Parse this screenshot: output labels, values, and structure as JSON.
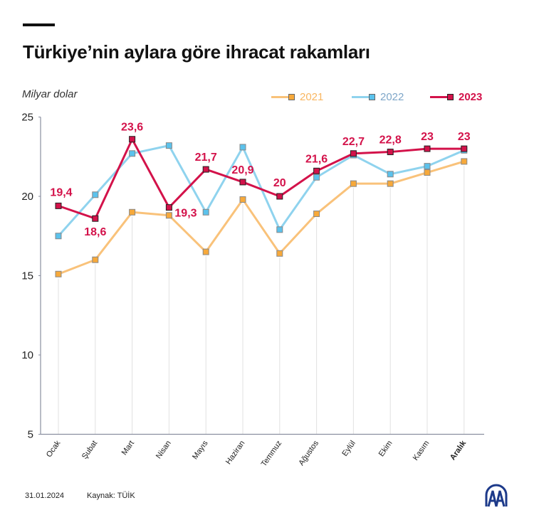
{
  "title": "Türkiye’nin aylara göre ihracat rakamları",
  "footer": {
    "date": "31.01.2024",
    "source": "Kaynak: TÜİK",
    "logo_text": "AA"
  },
  "chart_data": {
    "type": "line",
    "title": "Türkiye’nin aylara göre ihracat rakamları",
    "ylabel": "Milyar dolar",
    "xlabel": "",
    "categories": [
      "Ocak",
      "Şubat",
      "Mart",
      "Nisan",
      "Mayıs",
      "Haziran",
      "Temmuz",
      "Ağustos",
      "Eylül",
      "Ekim",
      "Kasım",
      "Aralık"
    ],
    "ylim": [
      5,
      25
    ],
    "yticks": [
      5,
      10,
      15,
      20,
      25
    ],
    "legend_position": "top-right",
    "grid": false,
    "series": [
      {
        "name": "2021",
        "color": "#f9c27a",
        "values": [
          15.1,
          16.0,
          19.0,
          18.8,
          16.5,
          19.8,
          16.4,
          18.9,
          20.8,
          20.8,
          21.5,
          22.2
        ],
        "labeled": false
      },
      {
        "name": "2022",
        "color": "#8fd3ee",
        "values": [
          17.5,
          20.1,
          22.7,
          23.2,
          19.0,
          23.1,
          17.9,
          21.2,
          22.6,
          21.4,
          21.9,
          22.9
        ],
        "labeled": false
      },
      {
        "name": "2023",
        "color": "#d3124a",
        "values": [
          19.4,
          18.6,
          23.6,
          19.3,
          21.7,
          20.9,
          20.0,
          21.6,
          22.7,
          22.8,
          23,
          23
        ],
        "labeled": true,
        "labels": [
          "19,4",
          "18,6",
          "23,6",
          "19,3",
          "21,7",
          "20,9",
          "20",
          "21,6",
          "22,7",
          "22,8",
          "23",
          "23"
        ]
      }
    ]
  }
}
